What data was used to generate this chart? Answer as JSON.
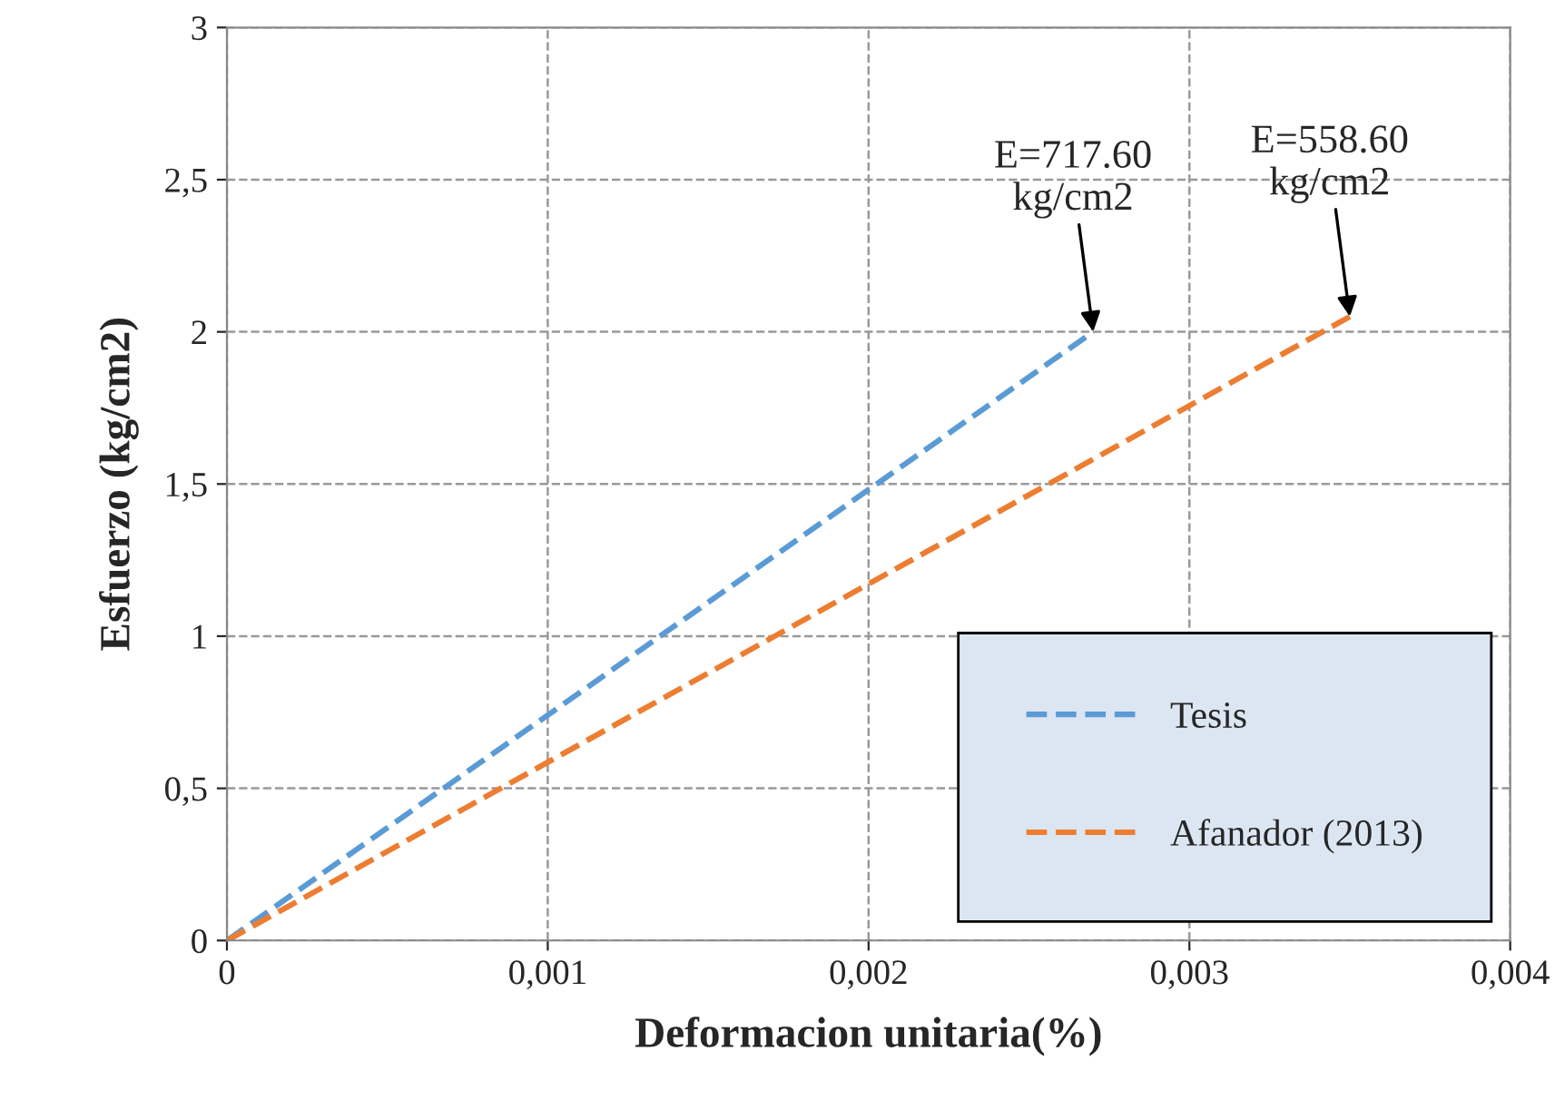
{
  "chart_data": {
    "type": "line",
    "xlabel": "Deformacion unitaria(%)",
    "ylabel": "Esfuerzo (kg/cm2)",
    "series": [
      {
        "name": "Tesis",
        "color": "#5b9bd5",
        "x": [
          0,
          0.0027
        ],
        "values": [
          0,
          2.0
        ]
      },
      {
        "name": "Afanador (2013)",
        "color": "#ed7d31",
        "x": [
          0,
          0.0035
        ],
        "values": [
          0,
          2.05
        ]
      }
    ],
    "xlim": [
      0,
      0.004
    ],
    "xticks": [
      0,
      {
        "value": 0.001,
        "label": "0,001"
      },
      {
        "value": 0.002,
        "label": "0,002"
      },
      {
        "value": 0.003,
        "label": "0,003"
      },
      {
        "value": 0.004,
        "label": "0,004"
      }
    ],
    "ylim": [
      0,
      3
    ],
    "yticks": [
      0,
      {
        "value": 0.5,
        "label": "0,5"
      },
      1,
      {
        "value": 1.5,
        "label": "1,5"
      },
      2,
      {
        "value": 2.5,
        "label": "2,5"
      },
      3
    ],
    "annotations": [
      {
        "text": "E=717.60\nkg/cm2",
        "x": 0.0027,
        "y": 2.0
      },
      {
        "text": "E=558.60\nkg/cm2",
        "x": 0.0035,
        "y": 2.05
      }
    ],
    "grid": true,
    "legend": "bottom right",
    "line_style": "dashed",
    "marker": "none"
  }
}
